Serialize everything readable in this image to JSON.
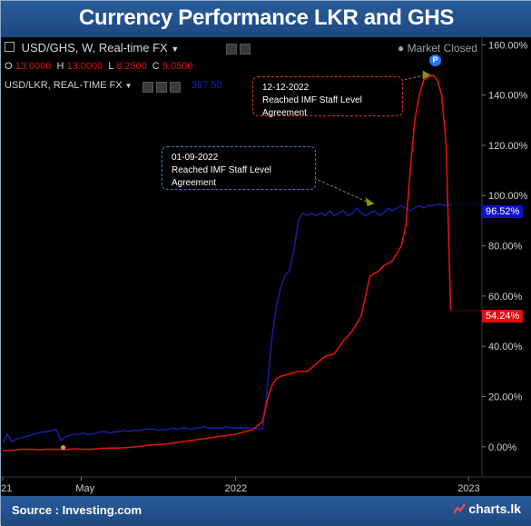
{
  "page": {
    "title": "Currency Performance LKR and GHS",
    "source": "Source : Investing.com",
    "brand": "charts.lk"
  },
  "header": {
    "pair1": "USD/GHS, W, Real-time FX",
    "market_status": "Market Closed",
    "ohlc": {
      "o_label": "O",
      "o": "13.0000",
      "h_label": "H",
      "h": "13.0000",
      "l_label": "L",
      "l": "8.2500",
      "c_label": "C",
      "c": "9.0500"
    },
    "pair2": "USD/LKR, REAL-TIME FX",
    "pair2_value": "367.50",
    "badge": "P"
  },
  "annotations": [
    {
      "date": "12-12-2022",
      "text": "Reached IMF Staff Level Agreement",
      "color": "#e03030",
      "series": "USD/GHS"
    },
    {
      "date": "01-09-2022",
      "text": "Reached IMF Staff Level Agreement",
      "color": "#3a78c8",
      "series": "USD/LKR"
    }
  ],
  "price_tags": [
    {
      "text": "96.52%",
      "color": "#1010cc"
    },
    {
      "text": "54.24%",
      "color": "#e01010"
    }
  ],
  "chart_data": {
    "type": "line",
    "title": "Currency Performance LKR and GHS",
    "ylabel": "",
    "ylim": [
      -12,
      163
    ],
    "yticks": [
      0,
      20,
      40,
      60,
      80,
      100,
      120,
      140,
      160
    ],
    "ytick_labels": [
      "0.00%",
      "20.00%",
      "40.00%",
      "60.00%",
      "80.00%",
      "100.00%",
      "120.00%",
      "140.00%",
      "160.00%"
    ],
    "xticks": [
      {
        "label": "21",
        "x": 0
      },
      {
        "label": "May",
        "x": 17.5
      },
      {
        "label": "2022",
        "x": 52
      },
      {
        "label": "2023",
        "x": 104
      }
    ],
    "xlim": [
      0,
      107
    ],
    "grid": false,
    "series": [
      {
        "name": "USD/LKR",
        "color": "#1a1a9c",
        "x": [
          0,
          1,
          2,
          3,
          4,
          5,
          6,
          7,
          8,
          9,
          10,
          11,
          12,
          13,
          14,
          15,
          16,
          17,
          18,
          19,
          20,
          21,
          22,
          23,
          24,
          25,
          26,
          27,
          28,
          29,
          30,
          31,
          32,
          33,
          34,
          35,
          36,
          37,
          38,
          39,
          40,
          41,
          42,
          43,
          44,
          45,
          46,
          47,
          48,
          49,
          50,
          51,
          52,
          53,
          54,
          55,
          56,
          57,
          58,
          59,
          60,
          61,
          62,
          63,
          64,
          65,
          66,
          67,
          68,
          69,
          70,
          71,
          72,
          73,
          74,
          75,
          76,
          77,
          78,
          79,
          80,
          81,
          82,
          83,
          84,
          85,
          86,
          87,
          88,
          89,
          90,
          91,
          92,
          93,
          94,
          95,
          96,
          97,
          98,
          99,
          100
        ],
        "values": [
          1.5,
          5.0,
          2.0,
          3.0,
          3.5,
          4.0,
          4.5,
          5.0,
          5.5,
          6.0,
          6.0,
          6.5,
          7.0,
          2.5,
          4.0,
          4.5,
          5.0,
          5.0,
          5.5,
          5.0,
          5.0,
          5.5,
          6.0,
          6.0,
          5.5,
          6.0,
          6.0,
          6.5,
          6.0,
          6.5,
          6.5,
          6.5,
          7.0,
          7.0,
          7.0,
          6.5,
          7.0,
          7.0,
          7.5,
          7.0,
          7.5,
          7.5,
          7.0,
          7.5,
          7.5,
          8.0,
          7.5,
          7.5,
          7.5,
          7.5,
          8.0,
          7.5,
          7.5,
          7.5,
          7.5,
          7.5,
          7.5,
          7.0,
          7.0,
          22.0,
          42.0,
          55.0,
          63.0,
          68.0,
          70.0,
          78.0,
          90.0,
          93.0,
          92.0,
          93.0,
          92.0,
          93.0,
          92.0,
          94.0,
          92.0,
          93.0,
          94.0,
          92.0,
          93.0,
          95.0,
          93.0,
          92.0,
          93.0,
          94.0,
          92.0,
          93.0,
          95.0,
          94.0,
          95.0,
          96.0,
          95.0,
          94.0,
          95.0,
          96.0,
          95.0,
          96.0,
          96.0,
          96.5,
          96.5,
          96.0,
          96.5
        ]
      },
      {
        "name": "USD/GHS",
        "color": "#e01010",
        "x": [
          0,
          2,
          4,
          6,
          8,
          10,
          12,
          14,
          16,
          18,
          20,
          22,
          24,
          26,
          28,
          30,
          32,
          34,
          36,
          38,
          40,
          42,
          44,
          46,
          48,
          50,
          52,
          54,
          56,
          58,
          59,
          60,
          61,
          62,
          63,
          64,
          66,
          68,
          70,
          72,
          74,
          76,
          78,
          80,
          82,
          84,
          85,
          86,
          87,
          88,
          89,
          90,
          91,
          92,
          93,
          94,
          95,
          96,
          97,
          98,
          99,
          100
        ],
        "values": [
          -1.5,
          -1.5,
          -1.0,
          -1.0,
          -1.2,
          -1.0,
          -1.0,
          -1.2,
          -0.8,
          -1.0,
          -1.0,
          -0.6,
          -0.5,
          -0.5,
          -0.3,
          0.0,
          0.5,
          0.8,
          1.0,
          1.5,
          2.0,
          2.5,
          3.0,
          3.5,
          4.0,
          4.5,
          5.0,
          6.0,
          7.0,
          10.0,
          18.0,
          24.0,
          27.0,
          28.0,
          28.5,
          29.0,
          30.0,
          30.0,
          33.0,
          36.0,
          37.0,
          42.0,
          46.0,
          52.0,
          68.0,
          70.0,
          72.0,
          73.0,
          74.0,
          77.0,
          80.0,
          88.0,
          110.0,
          130.0,
          140.0,
          146.0,
          147.0,
          148.0,
          146.0,
          140.0,
          120.0,
          54.2
        ]
      }
    ]
  }
}
